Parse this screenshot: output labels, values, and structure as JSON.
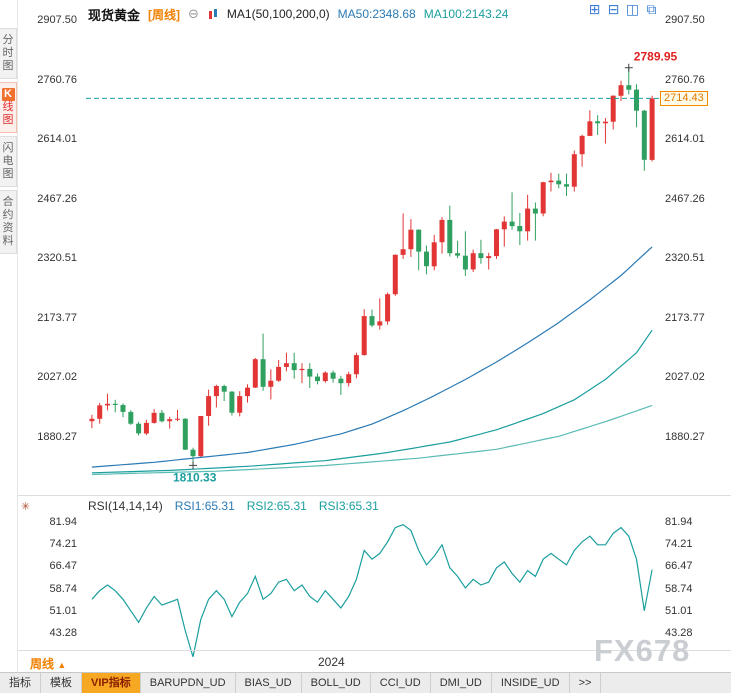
{
  "header": {
    "symbol": "现货黄金",
    "timeframe_tag": "[周线]",
    "collapse_icon": "⊖",
    "ma_settings": "MA1(50,100,200,0)",
    "ma50": "MA50:2348.68",
    "ma100": "MA100:2143.24",
    "layout_icons": [
      {
        "name": "grid-layout-icon",
        "glyph": "⊞"
      },
      {
        "name": "split-horizontal-icon",
        "glyph": "⊟"
      },
      {
        "name": "split-vertical-icon",
        "glyph": "◫"
      },
      {
        "name": "multi-window-icon",
        "glyph": "⧉"
      }
    ]
  },
  "sidebar": {
    "items": [
      {
        "id": "time-share",
        "label": "分时图",
        "active": false
      },
      {
        "id": "kline",
        "label": "K线图",
        "active": true
      },
      {
        "id": "lightning",
        "label": "闪电图",
        "active": false
      },
      {
        "id": "contract-info",
        "label": "合约资料",
        "active": false
      }
    ]
  },
  "rsi_header": {
    "label": "RSI(14,14,14)",
    "rsi1": "RSI1:65.31",
    "rsi2": "RSI2:65.31",
    "rsi3": "RSI3:65.31",
    "settings_icon": "✳"
  },
  "footer": {
    "timeframe": "周线",
    "arrow": "▲",
    "watermark": "FX678"
  },
  "bottom_tabs": [
    {
      "id": "indicators",
      "label": "指标",
      "highlight": false
    },
    {
      "id": "templates",
      "label": "模板",
      "highlight": false
    },
    {
      "id": "vip-indicators",
      "label": "VIP指标",
      "highlight": true
    },
    {
      "id": "barupdn-ud",
      "label": "BARUPDN_UD",
      "highlight": false
    },
    {
      "id": "bias-ud",
      "label": "BIAS_UD",
      "highlight": false
    },
    {
      "id": "boll-ud",
      "label": "BOLL_UD",
      "highlight": false
    },
    {
      "id": "cci-ud",
      "label": "CCI_UD",
      "highlight": false
    },
    {
      "id": "dmi-ud",
      "label": "DMI_UD",
      "highlight": false
    },
    {
      "id": "inside-ud",
      "label": "INSIDE_UD",
      "highlight": false
    },
    {
      "id": "more",
      "label": ">>",
      "highlight": false
    }
  ],
  "colors": {
    "up": "#e23535",
    "down": "#2fa05f",
    "teal": "#1b9e9e",
    "blue": "#2a7ab5",
    "red": "#e02020",
    "rsi": "#1b9e9e",
    "accent_orange": "#f08000"
  },
  "chart_data": {
    "type": "candlestick",
    "title": "现货黄金 周线 (Spot Gold Weekly) with MA(50,100,200) and RSI(14,14,14)",
    "x_axis": {
      "year": "2024"
    },
    "price": {
      "ylim": [
        1880.27,
        2907.5
      ],
      "axis": [
        "2907.50",
        "2760.76",
        "2614.01",
        "2467.26",
        "2320.51",
        "2173.77",
        "2027.02",
        "1880.27"
      ],
      "candles": [
        [
          1919,
          1935,
          1902,
          1925
        ],
        [
          1925,
          1964,
          1913,
          1958
        ],
        [
          1958,
          1987,
          1946,
          1962
        ],
        [
          1962,
          1972,
          1941,
          1959
        ],
        [
          1959,
          1963,
          1929,
          1942
        ],
        [
          1942,
          1946,
          1910,
          1913
        ],
        [
          1913,
          1918,
          1884,
          1889
        ],
        [
          1889,
          1923,
          1885,
          1915
        ],
        [
          1915,
          1949,
          1913,
          1940
        ],
        [
          1940,
          1947,
          1916,
          1919
        ],
        [
          1919,
          1930,
          1901,
          1924
        ],
        [
          1924,
          1947,
          1919,
          1925
        ],
        [
          1925,
          1927,
          1848,
          1849
        ],
        [
          1849,
          1854,
          1810.33,
          1833
        ],
        [
          1833,
          1932,
          1831,
          1932
        ],
        [
          1932,
          1997,
          1908,
          1981
        ],
        [
          1981,
          2009,
          1953,
          2006
        ],
        [
          2006,
          2009,
          1969,
          1992
        ],
        [
          1992,
          1993,
          1933,
          1940
        ],
        [
          1940,
          1993,
          1931,
          1981
        ],
        [
          1981,
          2010,
          1965,
          2002
        ],
        [
          2002,
          2075,
          2001,
          2072
        ],
        [
          2072,
          2135,
          1994,
          2004
        ],
        [
          2004,
          2047,
          1973,
          2019
        ],
        [
          2019,
          2070,
          2016,
          2053
        ],
        [
          2053,
          2088,
          2042,
          2062
        ],
        [
          2062,
          2088,
          2024,
          2045
        ],
        [
          2045,
          2062,
          2013,
          2048
        ],
        [
          2048,
          2062,
          2001,
          2029
        ],
        [
          2029,
          2037,
          2010,
          2018
        ],
        [
          2018,
          2042,
          2014,
          2039
        ],
        [
          2039,
          2044,
          2014,
          2024
        ],
        [
          2024,
          2031,
          1984,
          2013
        ],
        [
          2013,
          2041,
          2005,
          2035
        ],
        [
          2035,
          2088,
          2025,
          2082
        ],
        [
          2082,
          2195,
          2081,
          2178
        ],
        [
          2178,
          2194,
          2151,
          2155
        ],
        [
          2155,
          2222,
          2145,
          2165
        ],
        [
          2165,
          2236,
          2157,
          2232
        ],
        [
          2232,
          2330,
          2228,
          2329
        ],
        [
          2329,
          2431,
          2319,
          2343
        ],
        [
          2343,
          2417,
          2324,
          2391
        ],
        [
          2391,
          2392,
          2291,
          2337
        ],
        [
          2337,
          2352,
          2281,
          2301
        ],
        [
          2301,
          2378,
          2291,
          2360
        ],
        [
          2360,
          2422,
          2332,
          2415
        ],
        [
          2415,
          2450,
          2325,
          2333
        ],
        [
          2333,
          2364,
          2321,
          2327
        ],
        [
          2327,
          2387,
          2277,
          2293
        ],
        [
          2293,
          2342,
          2287,
          2333
        ],
        [
          2333,
          2366,
          2307,
          2321
        ],
        [
          2321,
          2334,
          2293,
          2326
        ],
        [
          2326,
          2393,
          2319,
          2392
        ],
        [
          2392,
          2424,
          2349,
          2411
        ],
        [
          2411,
          2483,
          2391,
          2400
        ],
        [
          2400,
          2432,
          2353,
          2387
        ],
        [
          2387,
          2477,
          2364,
          2443
        ],
        [
          2443,
          2458,
          2364,
          2431
        ],
        [
          2431,
          2509,
          2424,
          2508
        ],
        [
          2508,
          2531,
          2485,
          2512
        ],
        [
          2512,
          2529,
          2493,
          2503
        ],
        [
          2503,
          2529,
          2474,
          2497
        ],
        [
          2497,
          2586,
          2485,
          2577
        ],
        [
          2577,
          2625,
          2546,
          2622
        ],
        [
          2622,
          2685,
          2622,
          2658
        ],
        [
          2658,
          2673,
          2624,
          2653
        ],
        [
          2653,
          2666,
          2603,
          2657
        ],
        [
          2657,
          2722,
          2638,
          2721
        ],
        [
          2721,
          2758,
          2708,
          2747
        ],
        [
          2747,
          2789.95,
          2724,
          2736
        ],
        [
          2736,
          2749,
          2643,
          2684
        ],
        [
          2684,
          2686,
          2536,
          2563
        ],
        [
          2563,
          2721,
          2559,
          2714.43
        ]
      ],
      "ma_lines": [
        {
          "name": "ma50",
          "color": "#2a7ab5",
          "points": [
            [
              0,
              1806
            ],
            [
              8,
              1818
            ],
            [
              14,
              1830
            ],
            [
              20,
              1842
            ],
            [
              26,
              1862
            ],
            [
              32,
              1888
            ],
            [
              36,
              1912
            ],
            [
              40,
              1945
            ],
            [
              44,
              1982
            ],
            [
              48,
              2022
            ],
            [
              52,
              2065
            ],
            [
              56,
              2112
            ],
            [
              60,
              2162
            ],
            [
              64,
              2218
            ],
            [
              68,
              2278
            ],
            [
              72,
              2348.68
            ]
          ]
        },
        {
          "name": "ma100",
          "color": "#1b9e9e",
          "points": [
            [
              0,
              1792
            ],
            [
              10,
              1798
            ],
            [
              20,
              1808
            ],
            [
              30,
              1822
            ],
            [
              38,
              1842
            ],
            [
              46,
              1868
            ],
            [
              52,
              1898
            ],
            [
              58,
              1938
            ],
            [
              62,
              1972
            ],
            [
              66,
              2022
            ],
            [
              70,
              2088
            ],
            [
              72,
              2143.24
            ]
          ]
        },
        {
          "name": "ma200",
          "color": "#5bbcb4",
          "points": [
            [
              0,
              1788
            ],
            [
              16,
              1796
            ],
            [
              30,
              1810
            ],
            [
              42,
              1828
            ],
            [
              52,
              1850
            ],
            [
              60,
              1882
            ],
            [
              66,
              1918
            ],
            [
              72,
              1958
            ]
          ]
        }
      ]
    },
    "rsi": {
      "ylim": [
        43.28,
        81.94
      ],
      "axis": [
        "81.94",
        "74.21",
        "66.47",
        "58.74",
        "51.01",
        "43.28"
      ],
      "values": [
        55,
        58,
        60,
        58,
        55,
        51,
        47,
        52,
        56,
        53,
        54,
        55,
        44,
        35,
        48,
        55,
        58,
        55,
        49,
        54,
        57,
        63,
        55,
        57,
        61,
        62,
        58,
        60,
        56,
        54,
        58,
        55,
        52,
        56,
        62,
        72,
        69,
        71,
        75,
        80,
        81,
        79,
        72,
        67,
        70,
        74,
        66,
        63,
        59,
        62,
        60,
        61,
        66,
        68,
        64,
        61,
        65,
        63,
        69,
        71,
        69,
        67,
        72,
        75,
        77,
        74,
        74,
        78,
        80,
        77,
        69,
        51,
        65.31
      ]
    },
    "annotations": {
      "high": {
        "index": 69,
        "value": 2789.95,
        "label": "2789.95"
      },
      "low": {
        "index": 13,
        "value": 1810.33,
        "label": "1810.33"
      },
      "current": {
        "value": 2714.43,
        "label": "2714.43"
      }
    }
  }
}
